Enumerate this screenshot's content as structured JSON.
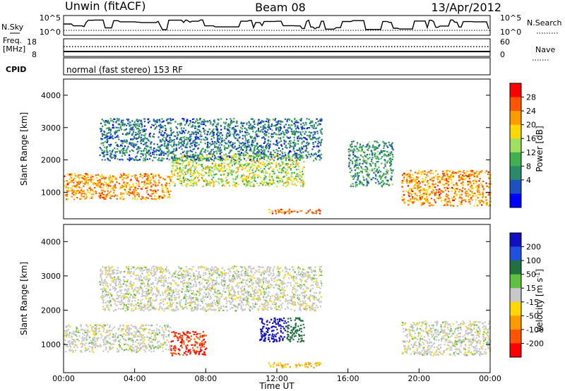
{
  "header": {
    "site": "Unwin (fitACF)",
    "beam": "Beam 08",
    "date": "13/Apr/2012"
  },
  "panels": {
    "nsky_label": "N.Sky",
    "nsearch_label": "N.Search",
    "nsky_ticks": [
      "10^5",
      "10^0"
    ],
    "nsearch_ticks": [
      "10^5",
      "10^0"
    ],
    "freq_label": "Freq.",
    "freq_unit": "[MHz]",
    "freq_ticks": [
      "18",
      "8"
    ],
    "nave_label": "Nave",
    "nave_ticks": [
      "60",
      "0"
    ],
    "cpid_label": "CPID",
    "cpid_value": "normal (fast stereo) 153 RF"
  },
  "chart_data": [
    {
      "type": "heatmap",
      "name": "power",
      "ylabel": "Slant Range [km]",
      "xlabel": "Time UT",
      "xlim": [
        0,
        24
      ],
      "ylim": [
        180,
        4500
      ],
      "yticks": [
        "1000",
        "2000",
        "3000",
        "4000"
      ],
      "colorbar": {
        "label": "Power [dB]",
        "ticks": [
          "28",
          "24",
          "20",
          "16",
          "12",
          "8",
          "4"
        ],
        "colors": [
          "#ff0000",
          "#ff5500",
          "#ff9900",
          "#ffd800",
          "#a0e060",
          "#40b050",
          "#2a8a6a",
          "#1e50c0",
          "#0000ff"
        ]
      },
      "features": [
        {
          "ut": [
            0.0,
            6.0
          ],
          "range": [
            800,
            1600
          ],
          "level_db": 22
        },
        {
          "ut": [
            6.0,
            13.5
          ],
          "range": [
            1200,
            2200
          ],
          "level_db": 16
        },
        {
          "ut": [
            2.0,
            14.5
          ],
          "range": [
            2000,
            3300
          ],
          "level_db": 8
        },
        {
          "ut": [
            16.0,
            18.5
          ],
          "range": [
            1200,
            2600
          ],
          "level_db": 10
        },
        {
          "ut": [
            19.0,
            24.0
          ],
          "range": [
            600,
            1700
          ],
          "level_db": 22
        },
        {
          "ut": [
            11.5,
            14.5
          ],
          "range": [
            350,
            500
          ],
          "level_db": 24
        }
      ]
    },
    {
      "type": "heatmap",
      "name": "velocity",
      "ylabel": "Slant Range [km]",
      "xlabel": "Time UT",
      "xlim": [
        0,
        24
      ],
      "ylim": [
        180,
        4500
      ],
      "yticks": [
        "1000",
        "2000",
        "3000",
        "4000"
      ],
      "xticks": [
        "00:00",
        "04:00",
        "08:00",
        "12:00",
        "16:00",
        "20:00",
        "00:00"
      ],
      "colorbar": {
        "label": "Velocity [m s",
        "label_sup": "-1",
        "label_end": "]",
        "ticks": [
          "200",
          "100",
          "50",
          "15",
          "-15",
          "-50",
          "-100",
          "-200"
        ],
        "colors": [
          "#1010c0",
          "#2050e0",
          "#207040",
          "#60c040",
          "#c8c8c8",
          "#ffd800",
          "#ff9900",
          "#ff5500",
          "#ff0000"
        ]
      },
      "features": [
        {
          "ut": [
            0.0,
            6.0
          ],
          "range": [
            800,
            1600
          ],
          "velocity_ms": 0
        },
        {
          "ut": [
            6.0,
            8.0
          ],
          "range": [
            700,
            1400
          ],
          "velocity_ms": -200
        },
        {
          "ut": [
            11.0,
            12.5
          ],
          "range": [
            1100,
            1800
          ],
          "velocity_ms": 200
        },
        {
          "ut": [
            12.5,
            13.5
          ],
          "range": [
            1100,
            1800
          ],
          "velocity_ms": 50
        },
        {
          "ut": [
            2.0,
            14.5
          ],
          "range": [
            2000,
            3300
          ],
          "velocity_ms": 0
        },
        {
          "ut": [
            19.0,
            24.0
          ],
          "range": [
            700,
            1700
          ],
          "velocity_ms": 0
        },
        {
          "ut": [
            11.5,
            14.5
          ],
          "range": [
            350,
            500
          ],
          "velocity_ms": -50
        }
      ]
    }
  ]
}
